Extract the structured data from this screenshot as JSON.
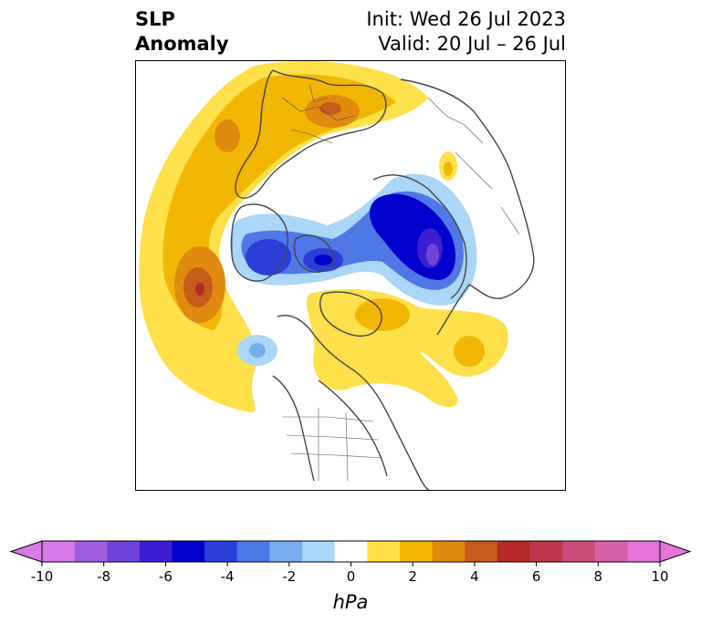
{
  "title": {
    "left_line1": "SLP",
    "left_line2": "Anomaly",
    "right_line1": "Init: Wed 26 Jul 2023",
    "right_line2": "Valid: 20 Jul – 26 Jul"
  },
  "colorbar": {
    "unit_label": "hPa",
    "tick_labels": [
      "-10",
      "-8",
      "-6",
      "-4",
      "-2",
      "0",
      "2",
      "4",
      "6",
      "8",
      "10"
    ],
    "levels": [
      -10,
      -9,
      -8,
      -7,
      -6,
      -5,
      -4,
      -3,
      -2,
      -1,
      1,
      2,
      3,
      4,
      5,
      6,
      7,
      8,
      9,
      10
    ],
    "colors": [
      "#d77ae8",
      "#a05ee2",
      "#7043d8",
      "#3c1fd2",
      "#0000cd",
      "#2a3ed8",
      "#4f78e6",
      "#78aeef",
      "#aad6f7",
      "#ffffff",
      "#fde04a",
      "#f2b705",
      "#e08a10",
      "#c85a1a",
      "#b52a28",
      "#c0344c",
      "#cc4a78",
      "#d760aa",
      "#e474d6"
    ],
    "extend_low_color": "#d77ae8",
    "extend_high_color": "#e474d6"
  },
  "map": {
    "projection": "north-polar",
    "land_outline_color": "#444444",
    "anomaly_features": [
      "positive anomaly over North Atlantic / Europe",
      "negative anomaly over Arctic Ocean",
      "negative anomaly over East Siberia",
      "positive anomaly over North Pacific",
      "positive anomaly over Hudson Bay / Greenland"
    ]
  }
}
